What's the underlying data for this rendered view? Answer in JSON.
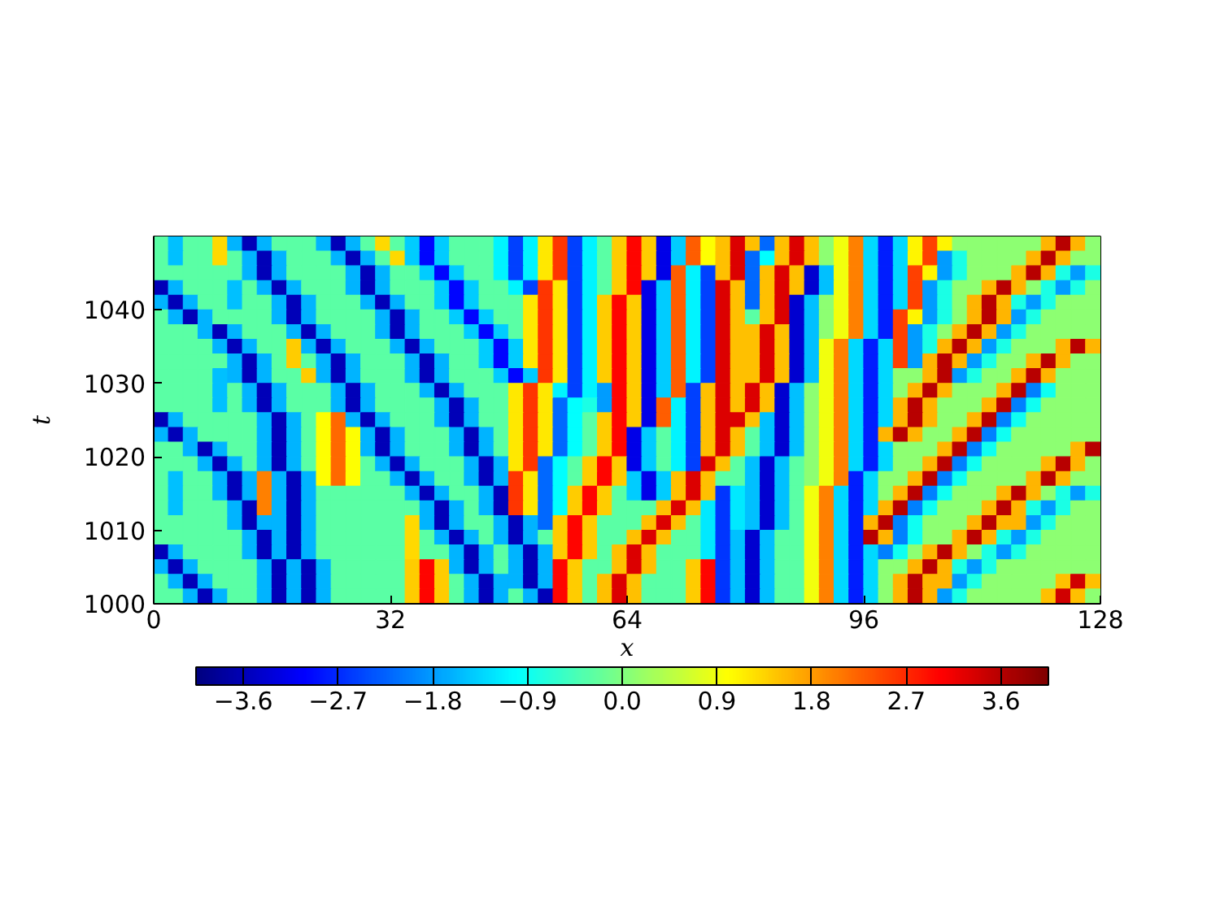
{
  "chart_data": {
    "type": "heatmap",
    "xlabel": "x",
    "ylabel": "t",
    "xlim": [
      0,
      128
    ],
    "ylim": [
      1000,
      1050
    ],
    "xticks": [
      0,
      32,
      64,
      96,
      128
    ],
    "yticks": [
      1000,
      1010,
      1020,
      1030,
      1040
    ],
    "clim": [
      -4.05,
      4.05
    ],
    "cticks": [
      {
        "value": -3.6,
        "label": "−3.6"
      },
      {
        "value": -2.7,
        "label": "−2.7"
      },
      {
        "value": -1.8,
        "label": "−1.8"
      },
      {
        "value": -0.9,
        "label": "−0.9"
      },
      {
        "value": 0,
        "label": "0.0"
      },
      0.9,
      1.8,
      2.7,
      3.6
    ],
    "cells": [
      [
        -0.3,
        -1.5,
        -0.3,
        -0.3,
        1.3,
        -1.6,
        -3.6,
        -1.6,
        -0.3,
        -0.3,
        -0.3,
        -1.6,
        -3.6,
        -1.6,
        -0.3,
        1.3,
        -0.3,
        -1.4,
        -3.0,
        -1.4,
        -0.3,
        -0.3,
        -0.3,
        -1.1,
        -2.5,
        -1.1,
        1.2,
        2.6,
        -2.5,
        -1.1,
        -0.3,
        1.4,
        3.0,
        1.4,
        -3.2,
        -1.4,
        2.3,
        1.0,
        1.5,
        3.3,
        1.5,
        -2.2,
        1.5,
        3.3,
        1.5,
        0.1,
        0.9,
        2.0,
        -1.3,
        -2.8,
        -1.3,
        1.1,
        2.5,
        1.1,
        0.1,
        0.1,
        0.1,
        0.1,
        0.1,
        0.1,
        1.6,
        3.6,
        1.6,
        0.1
      ],
      [
        -0.3,
        -1.5,
        -0.3,
        -0.3,
        1.3,
        -0.3,
        -1.6,
        -3.6,
        -1.6,
        -0.3,
        -0.3,
        -0.3,
        -1.6,
        -3.6,
        -1.6,
        -0.3,
        1.3,
        -1.4,
        -3.0,
        -1.4,
        -0.3,
        -0.3,
        -0.3,
        -1.1,
        -2.5,
        -1.1,
        1.2,
        2.6,
        -2.5,
        -1.1,
        -0.3,
        1.4,
        3.0,
        1.4,
        -3.2,
        -1.4,
        2.3,
        1.0,
        1.5,
        3.3,
        -2.2,
        -1.0,
        1.5,
        3.3,
        1.5,
        0.1,
        0.9,
        2.0,
        -1.3,
        -2.8,
        -1.3,
        1.1,
        2.5,
        -1.8,
        -0.8,
        0.1,
        0.1,
        0.1,
        0.1,
        1.6,
        3.6,
        1.6,
        0.1,
        0.1
      ],
      [
        -0.3,
        -0.3,
        -0.3,
        -0.3,
        -0.3,
        -0.3,
        -1.6,
        -3.6,
        -1.6,
        -0.3,
        -0.3,
        -0.3,
        -0.3,
        -1.6,
        -3.6,
        -1.6,
        -0.3,
        -0.3,
        -1.4,
        -3.0,
        -1.4,
        -0.3,
        -0.3,
        -1.1,
        -2.5,
        -1.1,
        1.2,
        2.6,
        -2.5,
        -1.1,
        -0.3,
        1.4,
        3.0,
        1.4,
        -3.2,
        2.3,
        -1.1,
        -2.5,
        1.5,
        3.3,
        -2.2,
        1.5,
        3.3,
        1.5,
        -3.4,
        -1.5,
        0.9,
        2.0,
        -1.3,
        -2.8,
        -1.3,
        2.5,
        1.1,
        -1.8,
        -0.8,
        0.1,
        0.1,
        0.1,
        1.6,
        3.6,
        1.6,
        -0.8,
        -1.8,
        -0.8
      ],
      [
        -3.6,
        -1.6,
        -0.3,
        -0.3,
        -0.3,
        -1.5,
        -0.3,
        -1.6,
        -3.6,
        -1.6,
        -0.3,
        -0.3,
        -0.3,
        -1.6,
        -3.6,
        -1.6,
        -0.3,
        -0.3,
        -0.3,
        -1.4,
        -3.0,
        -1.4,
        -0.3,
        -0.3,
        -1.1,
        -2.5,
        2.6,
        1.2,
        -2.5,
        -1.1,
        -0.3,
        1.4,
        3.0,
        -3.2,
        -1.4,
        2.3,
        -1.1,
        -2.5,
        3.3,
        1.5,
        -2.2,
        1.5,
        3.3,
        1.5,
        -3.4,
        -1.5,
        0.9,
        2.0,
        -1.3,
        -2.8,
        -1.3,
        2.5,
        -1.8,
        -0.8,
        0.1,
        0.1,
        1.6,
        3.6,
        1.6,
        0.1,
        -0.8,
        -1.8,
        -0.8,
        0.1
      ],
      [
        -1.6,
        -3.6,
        -1.6,
        -0.3,
        -0.3,
        -1.5,
        -0.3,
        -0.3,
        -1.6,
        -3.6,
        -1.6,
        -0.3,
        -0.3,
        -0.3,
        -1.6,
        -3.6,
        -1.6,
        -0.3,
        -0.3,
        -1.4,
        -3.0,
        -1.4,
        -0.3,
        -0.3,
        -0.3,
        1.2,
        2.6,
        1.2,
        -2.5,
        -1.1,
        1.4,
        3.0,
        1.4,
        -3.2,
        -1.4,
        2.3,
        -1.1,
        -2.5,
        3.3,
        1.5,
        -2.2,
        1.5,
        3.3,
        -3.4,
        -1.5,
        0.1,
        0.9,
        2.0,
        -1.3,
        -2.8,
        -1.3,
        2.5,
        -1.8,
        -0.8,
        0.1,
        1.6,
        3.6,
        1.6,
        -0.8,
        -1.8,
        -0.8,
        0.1,
        0.1,
        0.1
      ],
      [
        -0.3,
        -1.6,
        -3.6,
        -1.6,
        -0.3,
        -0.3,
        -0.3,
        -0.3,
        -1.6,
        -3.6,
        -1.6,
        -0.3,
        -0.3,
        -0.3,
        -0.3,
        -1.6,
        -3.6,
        -1.6,
        -0.3,
        -0.3,
        -1.4,
        -3.0,
        -1.4,
        -0.3,
        -0.3,
        1.2,
        2.6,
        1.2,
        -2.5,
        -1.1,
        1.4,
        3.0,
        1.4,
        -3.2,
        -1.4,
        2.3,
        -1.1,
        -2.5,
        3.3,
        1.5,
        -0.3,
        1.5,
        3.3,
        -3.4,
        -1.5,
        0.1,
        0.9,
        2.0,
        -1.3,
        -2.8,
        2.5,
        1.1,
        -1.8,
        -0.8,
        0.1,
        1.6,
        3.6,
        1.6,
        -1.8,
        -0.8,
        0.1,
        0.1,
        0.1,
        0.1
      ],
      [
        -0.3,
        -0.3,
        -0.3,
        -1.6,
        -3.6,
        -1.6,
        -0.3,
        -0.3,
        -0.3,
        -1.6,
        -3.6,
        -1.6,
        -0.3,
        -0.3,
        -0.3,
        -1.6,
        -3.6,
        -1.6,
        -0.3,
        -0.3,
        -0.3,
        -1.4,
        -3.0,
        -1.4,
        -0.3,
        1.2,
        2.6,
        1.2,
        -2.5,
        -1.1,
        1.4,
        3.0,
        1.4,
        -3.2,
        -1.4,
        2.3,
        -1.1,
        -2.5,
        3.3,
        1.5,
        1.5,
        3.3,
        1.5,
        -3.4,
        -1.5,
        0.1,
        0.9,
        2.0,
        -1.3,
        -2.8,
        2.5,
        -1.8,
        -0.8,
        0.1,
        1.6,
        3.6,
        1.6,
        -1.8,
        -0.8,
        0.1,
        0.1,
        0.1,
        0.1,
        0.1
      ],
      [
        -0.3,
        -0.3,
        -0.3,
        -0.3,
        -1.6,
        -3.6,
        -1.6,
        -0.3,
        -0.3,
        1.4,
        -1.6,
        -3.6,
        -1.6,
        -0.3,
        -0.3,
        -0.3,
        -1.6,
        -3.6,
        -1.6,
        -0.3,
        -0.3,
        -0.3,
        -1.4,
        -3.0,
        -1.4,
        1.2,
        2.6,
        1.2,
        -2.5,
        -1.1,
        1.4,
        3.0,
        1.4,
        -3.2,
        -1.4,
        2.3,
        -1.1,
        -2.5,
        3.3,
        1.5,
        1.5,
        3.3,
        1.5,
        -3.4,
        -1.5,
        0.9,
        2.0,
        -1.3,
        -2.8,
        -1.3,
        2.5,
        -1.8,
        -0.8,
        1.6,
        3.6,
        1.6,
        -1.8,
        -0.8,
        0.1,
        0.1,
        0.1,
        1.6,
        3.6,
        1.6
      ],
      [
        -0.3,
        -0.3,
        -0.3,
        -0.3,
        -0.3,
        -1.6,
        -3.6,
        -1.6,
        -0.3,
        1.4,
        -0.3,
        -1.6,
        -3.6,
        -1.6,
        -0.3,
        -0.3,
        -0.3,
        -1.6,
        -3.6,
        -1.6,
        -0.3,
        -0.3,
        -1.4,
        -3.0,
        -1.4,
        1.2,
        2.6,
        1.2,
        -2.5,
        -1.1,
        1.4,
        3.0,
        1.4,
        -3.2,
        -1.4,
        2.3,
        -1.1,
        -2.5,
        3.3,
        1.5,
        1.5,
        3.3,
        1.5,
        -3.4,
        -1.5,
        0.9,
        2.0,
        -1.3,
        -2.8,
        -1.3,
        2.5,
        -1.8,
        1.6,
        3.6,
        1.6,
        -1.8,
        -0.8,
        0.1,
        0.1,
        1.6,
        3.6,
        1.6,
        0.1,
        0.1
      ],
      [
        -0.3,
        -0.3,
        -0.3,
        -0.3,
        -1.5,
        -1.6,
        -3.6,
        -1.6,
        -0.3,
        -0.3,
        1.4,
        -1.6,
        -3.6,
        -1.6,
        -0.3,
        -0.3,
        -0.3,
        -1.6,
        -3.6,
        -1.6,
        -0.3,
        -0.3,
        -0.3,
        -1.4,
        -3.0,
        -1.4,
        2.6,
        1.2,
        -2.5,
        -1.1,
        1.4,
        3.0,
        1.4,
        -3.2,
        -1.4,
        2.3,
        -1.1,
        -2.5,
        3.3,
        1.5,
        1.5,
        3.3,
        1.5,
        -3.4,
        -1.5,
        0.9,
        2.0,
        -1.3,
        -2.8,
        -1.3,
        0.1,
        0.1,
        1.6,
        3.6,
        -1.8,
        -0.8,
        0.1,
        0.1,
        1.6,
        3.6,
        1.6,
        0.1,
        0.1,
        0.1
      ],
      [
        -0.3,
        -0.3,
        -0.3,
        -0.3,
        -1.5,
        -0.3,
        -1.6,
        -3.6,
        -1.6,
        -0.3,
        -0.3,
        -0.3,
        -1.6,
        -3.6,
        -1.6,
        -0.3,
        -0.3,
        -0.3,
        -1.6,
        -3.6,
        -1.6,
        -0.3,
        -0.3,
        -0.3,
        1.2,
        2.6,
        1.2,
        -1.1,
        -2.5,
        -1.1,
        -1.8,
        3.0,
        1.4,
        -3.2,
        -1.4,
        2.3,
        -2.5,
        1.5,
        3.3,
        1.5,
        3.3,
        1.5,
        -3.4,
        -1.5,
        0.1,
        0.9,
        2.0,
        -1.3,
        -2.8,
        -1.3,
        0.1,
        1.6,
        3.6,
        1.6,
        0.1,
        0.1,
        0.1,
        1.6,
        3.6,
        -2.0,
        -0.9,
        0.1,
        0.1,
        0.1
      ],
      [
        -0.3,
        -0.3,
        -0.3,
        -0.3,
        -1.5,
        -0.3,
        -1.6,
        -3.6,
        -1.6,
        -0.3,
        -0.3,
        -0.3,
        -1.6,
        -3.6,
        -1.6,
        -0.3,
        -0.3,
        -0.3,
        -0.3,
        -1.6,
        -3.6,
        -1.6,
        -0.3,
        -0.3,
        1.2,
        2.6,
        1.2,
        -2.2,
        -1.0,
        -0.8,
        -1.8,
        3.0,
        1.4,
        -3.2,
        2.3,
        -1.1,
        -2.5,
        1.5,
        3.3,
        1.5,
        3.3,
        1.5,
        -3.4,
        -1.5,
        0.1,
        0.9,
        2.0,
        -1.3,
        -2.8,
        -1.3,
        1.6,
        3.6,
        1.6,
        0.1,
        0.1,
        0.1,
        1.6,
        3.6,
        -2.0,
        -0.9,
        0.1,
        0.1,
        0.1,
        0.1
      ],
      [
        -3.6,
        -1.6,
        -0.3,
        -0.3,
        -0.3,
        -0.3,
        -0.3,
        -1.6,
        -3.6,
        -1.6,
        -0.3,
        1.0,
        2.2,
        -1.6,
        -3.6,
        -1.6,
        -0.3,
        -0.3,
        -0.3,
        -1.6,
        -3.6,
        -1.6,
        -0.3,
        -0.3,
        1.2,
        2.6,
        1.2,
        -2.2,
        -1.0,
        -0.3,
        1.4,
        3.0,
        1.4,
        -3.2,
        2.3,
        -1.1,
        -2.5,
        1.5,
        3.3,
        3.3,
        1.5,
        -1.5,
        -3.4,
        -1.5,
        0.1,
        0.9,
        2.0,
        -1.3,
        -2.8,
        -1.3,
        1.6,
        3.6,
        1.6,
        0.1,
        0.1,
        1.6,
        3.6,
        -2.0,
        -0.9,
        0.1,
        0.1,
        0.1,
        0.1,
        0.1
      ],
      [
        -1.6,
        -3.6,
        -1.6,
        -0.3,
        -0.3,
        -0.3,
        -0.3,
        -1.6,
        -3.6,
        -1.6,
        -0.3,
        1.0,
        2.2,
        1.0,
        -1.6,
        -3.6,
        -1.6,
        -0.3,
        -0.3,
        -0.3,
        -1.6,
        -3.6,
        -1.6,
        -0.3,
        1.2,
        2.6,
        1.2,
        -2.2,
        -1.0,
        -0.3,
        1.4,
        3.0,
        -3.2,
        -1.4,
        -0.3,
        -1.1,
        -2.5,
        1.5,
        3.3,
        1.5,
        -0.3,
        -1.5,
        -3.4,
        -1.5,
        0.1,
        0.9,
        2.0,
        -1.3,
        -2.8,
        1.6,
        3.6,
        1.6,
        0.1,
        0.1,
        1.6,
        3.6,
        -2.0,
        -0.9,
        0.1,
        0.1,
        0.1,
        0.1,
        0.1,
        0.1
      ],
      [
        -0.3,
        -0.3,
        -1.6,
        -3.6,
        -1.6,
        -0.3,
        -0.3,
        -1.6,
        -3.6,
        -1.6,
        -0.3,
        1.0,
        2.2,
        1.0,
        -1.6,
        -3.6,
        -1.6,
        -0.3,
        -0.3,
        -0.3,
        -1.6,
        -3.6,
        -1.6,
        -0.3,
        1.2,
        2.6,
        1.2,
        -2.2,
        -1.0,
        -0.3,
        1.4,
        3.0,
        -3.2,
        -1.4,
        -0.3,
        -1.1,
        -2.5,
        1.5,
        3.3,
        1.5,
        -0.3,
        -1.5,
        -3.4,
        -1.5,
        0.1,
        0.9,
        2.0,
        -1.3,
        -2.8,
        -1.3,
        0.1,
        0.1,
        0.1,
        1.6,
        3.6,
        -2.0,
        -0.9,
        0.1,
        0.1,
        0.1,
        0.1,
        0.1,
        1.6,
        3.6
      ],
      [
        -0.3,
        -0.3,
        -0.3,
        -1.6,
        -3.6,
        -1.6,
        -0.3,
        -1.6,
        -3.6,
        -1.6,
        -0.3,
        1.0,
        2.2,
        1.0,
        -0.3,
        -1.6,
        -3.6,
        -1.6,
        -0.3,
        -0.3,
        -0.3,
        -1.6,
        -3.6,
        -1.6,
        1.2,
        2.6,
        -2.2,
        -1.0,
        -0.3,
        1.4,
        3.0,
        1.4,
        -3.2,
        -1.4,
        -0.3,
        -1.1,
        -2.5,
        3.3,
        1.5,
        -0.3,
        -1.5,
        -3.4,
        -1.5,
        -0.3,
        0.1,
        0.9,
        2.0,
        -1.3,
        -2.8,
        -1.3,
        0.1,
        0.1,
        1.6,
        3.6,
        -2.0,
        -0.9,
        0.1,
        0.1,
        0.1,
        0.1,
        1.6,
        3.6,
        1.6,
        0.1
      ],
      [
        -0.3,
        -1.5,
        -0.3,
        -0.3,
        -1.6,
        -3.6,
        -1.6,
        2.0,
        -1.6,
        -3.6,
        -1.6,
        1.0,
        2.2,
        1.0,
        -0.3,
        -0.3,
        -1.6,
        -3.6,
        -1.6,
        -0.3,
        -0.3,
        -1.6,
        -3.6,
        -1.6,
        2.6,
        1.2,
        -2.2,
        -1.0,
        -0.3,
        1.4,
        3.0,
        1.4,
        -1.4,
        -3.2,
        -1.4,
        1.5,
        3.3,
        1.5,
        -0.3,
        -0.3,
        -1.5,
        -3.4,
        -1.5,
        -0.3,
        0.1,
        0.9,
        2.0,
        -2.8,
        -1.3,
        0.1,
        0.1,
        1.6,
        3.6,
        -2.0,
        -0.9,
        0.1,
        0.1,
        0.1,
        0.1,
        1.6,
        3.6,
        1.6,
        0.1,
        0.1
      ],
      [
        -0.3,
        -1.5,
        -0.3,
        -0.3,
        -1.6,
        -3.6,
        -1.6,
        2.0,
        -1.6,
        -3.6,
        -1.6,
        -0.3,
        -0.3,
        -0.3,
        -0.3,
        -0.3,
        -0.3,
        -1.6,
        -3.6,
        -1.6,
        -0.3,
        -0.3,
        -1.6,
        -3.6,
        2.6,
        1.2,
        -2.2,
        -1.0,
        1.4,
        3.0,
        1.4,
        -0.3,
        -1.4,
        -3.2,
        -1.4,
        1.5,
        3.3,
        1.5,
        -2.6,
        -1.2,
        -1.5,
        -3.4,
        -1.5,
        -0.3,
        0.9,
        2.0,
        -1.3,
        -2.8,
        -1.3,
        0.1,
        1.6,
        3.6,
        -2.0,
        -0.9,
        0.1,
        0.1,
        0.1,
        1.6,
        3.6,
        1.6,
        0.1,
        -0.8,
        -1.8,
        -0.8
      ],
      [
        -0.3,
        -1.5,
        -0.3,
        -0.3,
        -0.3,
        -1.6,
        -3.6,
        2.0,
        -1.6,
        -3.6,
        -1.6,
        -0.3,
        -0.3,
        -0.3,
        -0.3,
        -0.3,
        -0.3,
        -0.3,
        -1.6,
        -3.6,
        -1.6,
        -0.3,
        -1.6,
        -3.6,
        2.6,
        1.2,
        -2.2,
        -1.0,
        1.4,
        3.0,
        1.4,
        -0.3,
        -0.3,
        -0.3,
        1.5,
        3.3,
        1.5,
        -1.2,
        -2.6,
        -1.2,
        -1.5,
        -3.4,
        -1.5,
        -0.3,
        0.9,
        2.0,
        -1.3,
        -2.8,
        -1.3,
        1.6,
        3.6,
        -2.0,
        -0.9,
        0.1,
        0.1,
        0.1,
        1.6,
        3.6,
        1.6,
        -0.8,
        -1.8,
        -0.8,
        0.1,
        0.1
      ],
      [
        -0.3,
        -0.3,
        -0.3,
        -0.3,
        -0.3,
        -1.6,
        -3.6,
        -1.6,
        -1.6,
        -3.6,
        -1.6,
        -0.3,
        -0.3,
        -0.3,
        -0.3,
        -0.3,
        -0.3,
        1.3,
        -1.6,
        -3.6,
        -1.6,
        -0.3,
        -0.3,
        -1.6,
        -3.6,
        -1.6,
        -2.2,
        1.4,
        3.0,
        1.4,
        -0.3,
        -0.3,
        -0.3,
        1.5,
        3.3,
        1.5,
        -0.3,
        -1.2,
        -2.6,
        -1.2,
        -1.5,
        -3.4,
        -1.5,
        -0.3,
        0.9,
        2.0,
        -1.3,
        -2.8,
        1.6,
        3.6,
        -2.0,
        -0.9,
        0.1,
        0.1,
        0.1,
        1.6,
        3.6,
        1.6,
        1.6,
        -1.8,
        -0.8,
        0.1,
        0.1,
        0.1
      ],
      [
        -0.3,
        -0.3,
        -0.3,
        -0.3,
        -0.3,
        -0.3,
        -1.6,
        -3.6,
        -1.6,
        -3.6,
        -1.6,
        -0.3,
        -0.3,
        -0.3,
        -0.3,
        -0.3,
        -0.3,
        1.3,
        -0.3,
        -1.6,
        -3.6,
        -1.6,
        -0.3,
        -1.6,
        -3.6,
        -1.6,
        -0.3,
        1.4,
        3.0,
        1.4,
        -0.3,
        -0.3,
        1.5,
        3.3,
        1.5,
        -0.3,
        -0.3,
        -1.2,
        -2.6,
        -1.5,
        -3.4,
        -1.5,
        -0.3,
        -0.3,
        0.9,
        2.0,
        -1.3,
        -2.8,
        3.6,
        1.6,
        -2.0,
        -0.9,
        0.1,
        0.1,
        1.6,
        3.6,
        1.6,
        -0.8,
        -1.8,
        -0.8,
        0.1,
        0.1,
        0.1,
        0.1
      ],
      [
        -3.6,
        -1.6,
        -0.3,
        -0.3,
        -0.3,
        -0.3,
        -1.6,
        -3.6,
        -1.6,
        -3.6,
        -1.6,
        -0.3,
        -0.3,
        -0.3,
        -0.3,
        -0.3,
        -0.3,
        1.3,
        -0.3,
        -0.3,
        -1.6,
        -3.6,
        -1.6,
        -0.3,
        -1.6,
        -3.6,
        -1.6,
        1.4,
        3.0,
        1.4,
        -0.3,
        1.5,
        3.3,
        1.5,
        -0.3,
        -0.3,
        -0.3,
        -1.2,
        -2.6,
        -1.5,
        -3.4,
        -1.5,
        -0.3,
        -0.3,
        0.9,
        2.0,
        -1.3,
        -2.8,
        -1.3,
        -2.0,
        -0.9,
        0.1,
        1.6,
        3.6,
        1.6,
        0.1,
        -0.8,
        -1.8,
        -0.8,
        0.1,
        0.1,
        0.1,
        0.1,
        0.1
      ],
      [
        -1.6,
        -3.6,
        -1.6,
        -0.3,
        -0.3,
        -0.3,
        -0.3,
        -1.6,
        -3.6,
        -1.6,
        -3.6,
        -1.6,
        -0.3,
        -0.3,
        -0.3,
        -0.3,
        -0.3,
        1.4,
        3.0,
        1.4,
        -1.6,
        -3.6,
        -1.6,
        -0.3,
        -1.6,
        -3.6,
        -1.6,
        3.0,
        1.4,
        -0.3,
        -0.3,
        1.5,
        3.3,
        1.5,
        -0.3,
        -0.3,
        1.4,
        3.0,
        -2.6,
        -1.5,
        -3.4,
        -1.5,
        -0.3,
        -0.3,
        0.9,
        2.0,
        -1.3,
        -2.8,
        -1.3,
        0.1,
        0.1,
        1.6,
        3.6,
        1.6,
        -0.8,
        -1.8,
        -0.8,
        0.1,
        0.1,
        0.1,
        0.1,
        0.1,
        0.1,
        0.1
      ],
      [
        -0.3,
        -1.6,
        -3.6,
        -1.6,
        -0.3,
        -0.3,
        -0.3,
        -1.6,
        -3.6,
        -1.6,
        -3.6,
        -1.6,
        -0.3,
        -0.3,
        -0.3,
        -0.3,
        -0.3,
        1.4,
        3.0,
        1.4,
        -0.3,
        -1.6,
        -3.6,
        -1.6,
        -1.6,
        -3.6,
        -1.6,
        3.0,
        1.4,
        -0.3,
        1.5,
        3.3,
        1.5,
        -0.3,
        -0.3,
        -0.3,
        1.4,
        3.0,
        -2.6,
        -1.5,
        -3.4,
        -1.5,
        -0.3,
        -0.3,
        0.9,
        2.0,
        -1.3,
        -2.8,
        -1.3,
        0.1,
        1.6,
        3.6,
        1.6,
        1.6,
        -1.8,
        -0.8,
        0.1,
        0.1,
        0.1,
        0.1,
        0.1,
        1.5,
        3.4,
        1.5
      ],
      [
        -0.3,
        -0.3,
        -1.6,
        -3.6,
        -1.6,
        -0.3,
        -0.3,
        -1.6,
        -3.6,
        -1.6,
        -3.6,
        -1.6,
        -0.3,
        -0.3,
        -0.3,
        -0.3,
        -0.3,
        1.4,
        3.0,
        1.4,
        -0.3,
        -1.6,
        -3.6,
        -1.6,
        -0.3,
        -1.6,
        -3.6,
        3.0,
        1.4,
        -0.3,
        1.5,
        3.3,
        1.5,
        -0.3,
        -0.3,
        -0.3,
        1.4,
        3.0,
        -2.6,
        -1.5,
        -3.4,
        -1.5,
        -0.3,
        -0.3,
        0.9,
        2.0,
        -1.3,
        -2.8,
        -1.3,
        0.1,
        1.6,
        3.6,
        1.6,
        -1.8,
        -0.8,
        0.1,
        0.1,
        0.1,
        0.1,
        0.1,
        1.5,
        3.4,
        1.5,
        0.1
      ]
    ]
  }
}
